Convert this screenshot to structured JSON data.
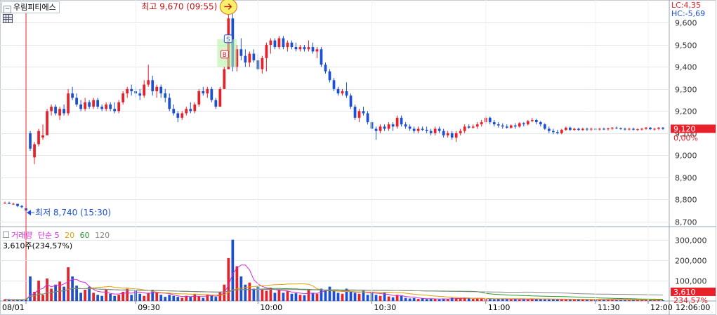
{
  "stock": {
    "name": "우림피티에스"
  },
  "limits": {
    "lc": "LC:4,35",
    "hc": "HC:-5,69"
  },
  "annotations": {
    "high": {
      "label": "최고 9,670 (09:55)",
      "value": 9670,
      "time": "09:55"
    },
    "low": {
      "label": "최저 8,740 (15:30)",
      "value": 8740,
      "time": "15:30"
    },
    "markers": [
      "S",
      "B"
    ]
  },
  "current": {
    "price": "9,120",
    "change": "0,00%",
    "volume": "3,610",
    "volume_pct": "234,57%"
  },
  "volume_header": {
    "title": "거래량",
    "ma_label": "단순",
    "ma_periods": [
      "5",
      "20",
      "60",
      "120"
    ],
    "info": "3,610주(234,57%)"
  },
  "xaxis": {
    "date": "08/01",
    "time_now": "12:06:00"
  },
  "colors": {
    "up": "#e8202a",
    "down": "#1a4fd6",
    "ma5": "#d52ad2",
    "ma20": "#e0a000",
    "ma60": "#2a9a2a",
    "ma120": "#888888"
  },
  "chart_data": [
    {
      "type": "candlestick",
      "price_ticks": [
        "9,600",
        "9,500",
        "9,400",
        "9,300",
        "9,200",
        "9,100",
        "9,000",
        "8,900",
        "8,800",
        "8,700"
      ],
      "ylim": [
        8680,
        9700
      ],
      "time_ticks": [
        "09:30",
        "10:00",
        "10:30",
        "11:00",
        "11:30",
        "12:00"
      ],
      "candles": [
        [
          0,
          8785,
          8790,
          8780,
          8785
        ],
        [
          1,
          8785,
          8790,
          8780,
          8780
        ],
        [
          2,
          8780,
          8785,
          8775,
          8780
        ],
        [
          3,
          8780,
          8780,
          8765,
          8770
        ],
        [
          4,
          8770,
          8775,
          8760,
          8765
        ],
        [
          5,
          8760,
          8760,
          8740,
          8750
        ],
        [
          6,
          9100,
          9110,
          9020,
          9030
        ],
        [
          7,
          8990,
          9060,
          8960,
          9050
        ],
        [
          8,
          9050,
          9120,
          9040,
          9110
        ],
        [
          9,
          9080,
          9140,
          9070,
          9090
        ],
        [
          10,
          9090,
          9210,
          9090,
          9200
        ],
        [
          11,
          9200,
          9230,
          9180,
          9220
        ],
        [
          12,
          9220,
          9230,
          9180,
          9190
        ],
        [
          13,
          9180,
          9220,
          9160,
          9210
        ],
        [
          14,
          9210,
          9230,
          9180,
          9190
        ],
        [
          15,
          9190,
          9300,
          9180,
          9280
        ],
        [
          16,
          9280,
          9310,
          9250,
          9260
        ],
        [
          17,
          9260,
          9280,
          9220,
          9230
        ],
        [
          18,
          9230,
          9250,
          9200,
          9210
        ],
        [
          19,
          9210,
          9260,
          9200,
          9240
        ],
        [
          20,
          9240,
          9250,
          9210,
          9220
        ],
        [
          21,
          9220,
          9260,
          9210,
          9250
        ],
        [
          22,
          9250,
          9260,
          9210,
          9220
        ],
        [
          23,
          9220,
          9230,
          9200,
          9210
        ],
        [
          24,
          9210,
          9240,
          9200,
          9230
        ],
        [
          25,
          9230,
          9240,
          9200,
          9210
        ],
        [
          26,
          9210,
          9240,
          9190,
          9200
        ],
        [
          27,
          9200,
          9250,
          9190,
          9240
        ],
        [
          28,
          9240,
          9290,
          9230,
          9280
        ],
        [
          29,
          9280,
          9310,
          9260,
          9300
        ],
        [
          30,
          9300,
          9320,
          9270,
          9290
        ],
        [
          31,
          9290,
          9310,
          9260,
          9280
        ],
        [
          32,
          9280,
          9300,
          9250,
          9270
        ],
        [
          33,
          9270,
          9340,
          9260,
          9320
        ],
        [
          34,
          9320,
          9410,
          9310,
          9340
        ],
        [
          35,
          9340,
          9360,
          9270,
          9290
        ],
        [
          36,
          9290,
          9320,
          9260,
          9310
        ],
        [
          37,
          9310,
          9320,
          9260,
          9280
        ],
        [
          38,
          9280,
          9300,
          9240,
          9260
        ],
        [
          39,
          9260,
          9280,
          9200,
          9210
        ],
        [
          40,
          9210,
          9230,
          9180,
          9190
        ],
        [
          41,
          9190,
          9200,
          9150,
          9170
        ],
        [
          42,
          9170,
          9200,
          9160,
          9190
        ],
        [
          43,
          9190,
          9220,
          9180,
          9210
        ],
        [
          44,
          9210,
          9240,
          9190,
          9200
        ],
        [
          45,
          9200,
          9240,
          9190,
          9230
        ],
        [
          46,
          9230,
          9300,
          9220,
          9290
        ],
        [
          47,
          9290,
          9310,
          9270,
          9280
        ],
        [
          48,
          9280,
          9310,
          9260,
          9300
        ],
        [
          49,
          9300,
          9310,
          9240,
          9250
        ],
        [
          50,
          9250,
          9260,
          9210,
          9220
        ],
        [
          51,
          9220,
          9310,
          9220,
          9300
        ],
        [
          52,
          9300,
          9400,
          9300,
          9390
        ],
        [
          53,
          9390,
          9670,
          9390,
          9620
        ],
        [
          54,
          9620,
          9640,
          9380,
          9400
        ],
        [
          55,
          9400,
          9500,
          9380,
          9480
        ],
        [
          56,
          9480,
          9530,
          9430,
          9450
        ],
        [
          57,
          9450,
          9480,
          9400,
          9420
        ],
        [
          58,
          9420,
          9470,
          9400,
          9460
        ],
        [
          59,
          9460,
          9480,
          9420,
          9430
        ],
        [
          60,
          9430,
          9460,
          9380,
          9390
        ],
        [
          61,
          9390,
          9450,
          9370,
          9440
        ],
        [
          62,
          9440,
          9510,
          9380,
          9500
        ],
        [
          63,
          9500,
          9530,
          9460,
          9520
        ],
        [
          64,
          9520,
          9530,
          9480,
          9490
        ],
        [
          65,
          9490,
          9540,
          9480,
          9530
        ],
        [
          66,
          9530,
          9540,
          9480,
          9490
        ],
        [
          67,
          9490,
          9520,
          9470,
          9510
        ],
        [
          68,
          9510,
          9520,
          9480,
          9490
        ],
        [
          69,
          9490,
          9510,
          9470,
          9480
        ],
        [
          70,
          9480,
          9500,
          9470,
          9490
        ],
        [
          71,
          9490,
          9500,
          9470,
          9480
        ],
        [
          72,
          9480,
          9520,
          9470,
          9490
        ],
        [
          73,
          9490,
          9510,
          9460,
          9470
        ],
        [
          74,
          9470,
          9490,
          9440,
          9480
        ],
        [
          75,
          9480,
          9490,
          9400,
          9410
        ],
        [
          76,
          9410,
          9420,
          9370,
          9380
        ],
        [
          77,
          9380,
          9390,
          9330,
          9340
        ],
        [
          78,
          9340,
          9350,
          9290,
          9300
        ],
        [
          79,
          9300,
          9310,
          9270,
          9280
        ],
        [
          80,
          9280,
          9300,
          9270,
          9290
        ],
        [
          81,
          9290,
          9330,
          9260,
          9270
        ],
        [
          82,
          9270,
          9280,
          9210,
          9220
        ],
        [
          83,
          9220,
          9230,
          9160,
          9170
        ],
        [
          84,
          9170,
          9210,
          9150,
          9200
        ],
        [
          85,
          9200,
          9220,
          9180,
          9190
        ],
        [
          86,
          9190,
          9200,
          9140,
          9150
        ],
        [
          87,
          9150,
          9160,
          9110,
          9120
        ],
        [
          88,
          9120,
          9130,
          9070,
          9110
        ],
        [
          89,
          9110,
          9140,
          9100,
          9130
        ],
        [
          90,
          9130,
          9140,
          9110,
          9120
        ],
        [
          91,
          9120,
          9150,
          9110,
          9140
        ],
        [
          92,
          9140,
          9150,
          9110,
          9130
        ],
        [
          93,
          9130,
          9180,
          9120,
          9170
        ],
        [
          94,
          9170,
          9180,
          9130,
          9140
        ],
        [
          95,
          9140,
          9150,
          9120,
          9130
        ],
        [
          96,
          9130,
          9140,
          9110,
          9120
        ],
        [
          97,
          9120,
          9130,
          9100,
          9110
        ],
        [
          98,
          9110,
          9130,
          9100,
          9120
        ],
        [
          99,
          9120,
          9130,
          9110,
          9115
        ],
        [
          100,
          9115,
          9130,
          9100,
          9110
        ],
        [
          101,
          9110,
          9120,
          9090,
          9100
        ],
        [
          102,
          9100,
          9130,
          9090,
          9120
        ],
        [
          103,
          9120,
          9130,
          9100,
          9110
        ],
        [
          104,
          9110,
          9120,
          9080,
          9090
        ],
        [
          105,
          9090,
          9110,
          9080,
          9100
        ],
        [
          106,
          9100,
          9110,
          9070,
          9080
        ],
        [
          107,
          9080,
          9110,
          9060,
          9100
        ],
        [
          108,
          9100,
          9120,
          9090,
          9110
        ],
        [
          109,
          9110,
          9140,
          9100,
          9130
        ],
        [
          110,
          9130,
          9140,
          9120,
          9125
        ],
        [
          111,
          9125,
          9140,
          9120,
          9130
        ],
        [
          112,
          9130,
          9150,
          9120,
          9140
        ],
        [
          113,
          9140,
          9160,
          9130,
          9150
        ],
        [
          114,
          9150,
          9180,
          9140,
          9170
        ],
        [
          115,
          9170,
          9175,
          9140,
          9150
        ],
        [
          116,
          9150,
          9160,
          9130,
          9140
        ],
        [
          117,
          9140,
          9150,
          9125,
          9135
        ],
        [
          118,
          9135,
          9145,
          9120,
          9130
        ],
        [
          119,
          9130,
          9140,
          9120,
          9125
        ],
        [
          120,
          9125,
          9140,
          9120,
          9135
        ],
        [
          121,
          9135,
          9145,
          9120,
          9130
        ],
        [
          122,
          9130,
          9150,
          9125,
          9145
        ],
        [
          123,
          9145,
          9150,
          9130,
          9140
        ],
        [
          124,
          9140,
          9160,
          9135,
          9155
        ],
        [
          125,
          9155,
          9170,
          9150,
          9160
        ],
        [
          126,
          9160,
          9165,
          9140,
          9150
        ],
        [
          127,
          9150,
          9155,
          9130,
          9140
        ],
        [
          128,
          9140,
          9145,
          9115,
          9120
        ],
        [
          129,
          9120,
          9130,
          9100,
          9110
        ],
        [
          130,
          9110,
          9120,
          9095,
          9105
        ],
        [
          131,
          9105,
          9115,
          9095,
          9100
        ],
        [
          132,
          9100,
          9120,
          9095,
          9115
        ],
        [
          133,
          9115,
          9130,
          9110,
          9125
        ],
        [
          134,
          9125,
          9130,
          9110,
          9115
        ],
        [
          135,
          9115,
          9125,
          9110,
          9120
        ],
        [
          136,
          9120,
          9125,
          9110,
          9115
        ],
        [
          137,
          9115,
          9125,
          9110,
          9120
        ],
        [
          138,
          9120,
          9125,
          9110,
          9118
        ],
        [
          139,
          9118,
          9125,
          9110,
          9120
        ],
        [
          140,
          9120,
          9125,
          9112,
          9118
        ],
        [
          141,
          9118,
          9124,
          9112,
          9120
        ],
        [
          142,
          9120,
          9125,
          9114,
          9119
        ],
        [
          143,
          9119,
          9125,
          9112,
          9121
        ],
        [
          144,
          9121,
          9128,
          9115,
          9125
        ],
        [
          145,
          9125,
          9130,
          9118,
          9122
        ],
        [
          146,
          9122,
          9126,
          9115,
          9120
        ],
        [
          147,
          9120,
          9125,
          9112,
          9118
        ],
        [
          148,
          9118,
          9124,
          9112,
          9120
        ],
        [
          149,
          9120,
          9125,
          9112,
          9116
        ],
        [
          150,
          9116,
          9122,
          9110,
          9118
        ],
        [
          151,
          9118,
          9124,
          9112,
          9120
        ],
        [
          152,
          9120,
          9128,
          9115,
          9125
        ],
        [
          153,
          9125,
          9128,
          9115,
          9118
        ],
        [
          154,
          9118,
          9124,
          9112,
          9120
        ],
        [
          155,
          9120,
          9128,
          9115,
          9125
        ],
        [
          156,
          9125,
          9128,
          9115,
          9120
        ]
      ]
    },
    {
      "type": "volume",
      "vol_ticks": [
        "300,000",
        "200,000",
        "100,000"
      ],
      "ylim": [
        0,
        340000
      ],
      "volumes": [
        8000,
        6000,
        5000,
        4000,
        6000,
        9000,
        120000,
        45000,
        100000,
        30000,
        110000,
        60000,
        80000,
        95000,
        70000,
        165000,
        120000,
        75000,
        40000,
        55000,
        70000,
        40000,
        30000,
        25000,
        55000,
        35000,
        25000,
        30000,
        45000,
        60000,
        30000,
        50000,
        35000,
        25000,
        40000,
        55000,
        45000,
        30000,
        20000,
        30000,
        25000,
        20000,
        15000,
        25000,
        20000,
        35000,
        22000,
        15000,
        30000,
        28000,
        20000,
        45000,
        80000,
        210000,
        300000,
        170000,
        120000,
        80000,
        90000,
        60000,
        70000,
        55000,
        50000,
        65000,
        40000,
        55000,
        40000,
        48000,
        35000,
        38000,
        30000,
        28000,
        55000,
        40000,
        35000,
        60000,
        55000,
        70000,
        50000,
        40000,
        35000,
        60000,
        45000,
        40000,
        35000,
        50000,
        30000,
        45000,
        30000,
        25000,
        40000,
        22000,
        18000,
        30000,
        25000,
        15000,
        12000,
        14000,
        10000,
        12000,
        9000,
        11000,
        10000,
        8000,
        12000,
        9000,
        15000,
        14000,
        12000,
        16000,
        13000,
        10000,
        12000,
        14000,
        11000,
        9000,
        8000,
        10000,
        12000,
        9000,
        8000,
        10000,
        7000,
        9000,
        8000,
        10000,
        12000,
        9000,
        8000,
        7000,
        9000,
        8000,
        10000,
        7000,
        6000,
        8000,
        7000,
        6000,
        5000,
        7000,
        6000,
        5000,
        6000,
        8000,
        5000,
        4000,
        6000,
        5000,
        4000,
        6000,
        5000,
        4000,
        5000,
        4000,
        5000,
        6000,
        3610
      ],
      "series": [
        {
          "name": "5"
        },
        {
          "name": "20"
        },
        {
          "name": "60"
        },
        {
          "name": "120"
        }
      ]
    }
  ]
}
